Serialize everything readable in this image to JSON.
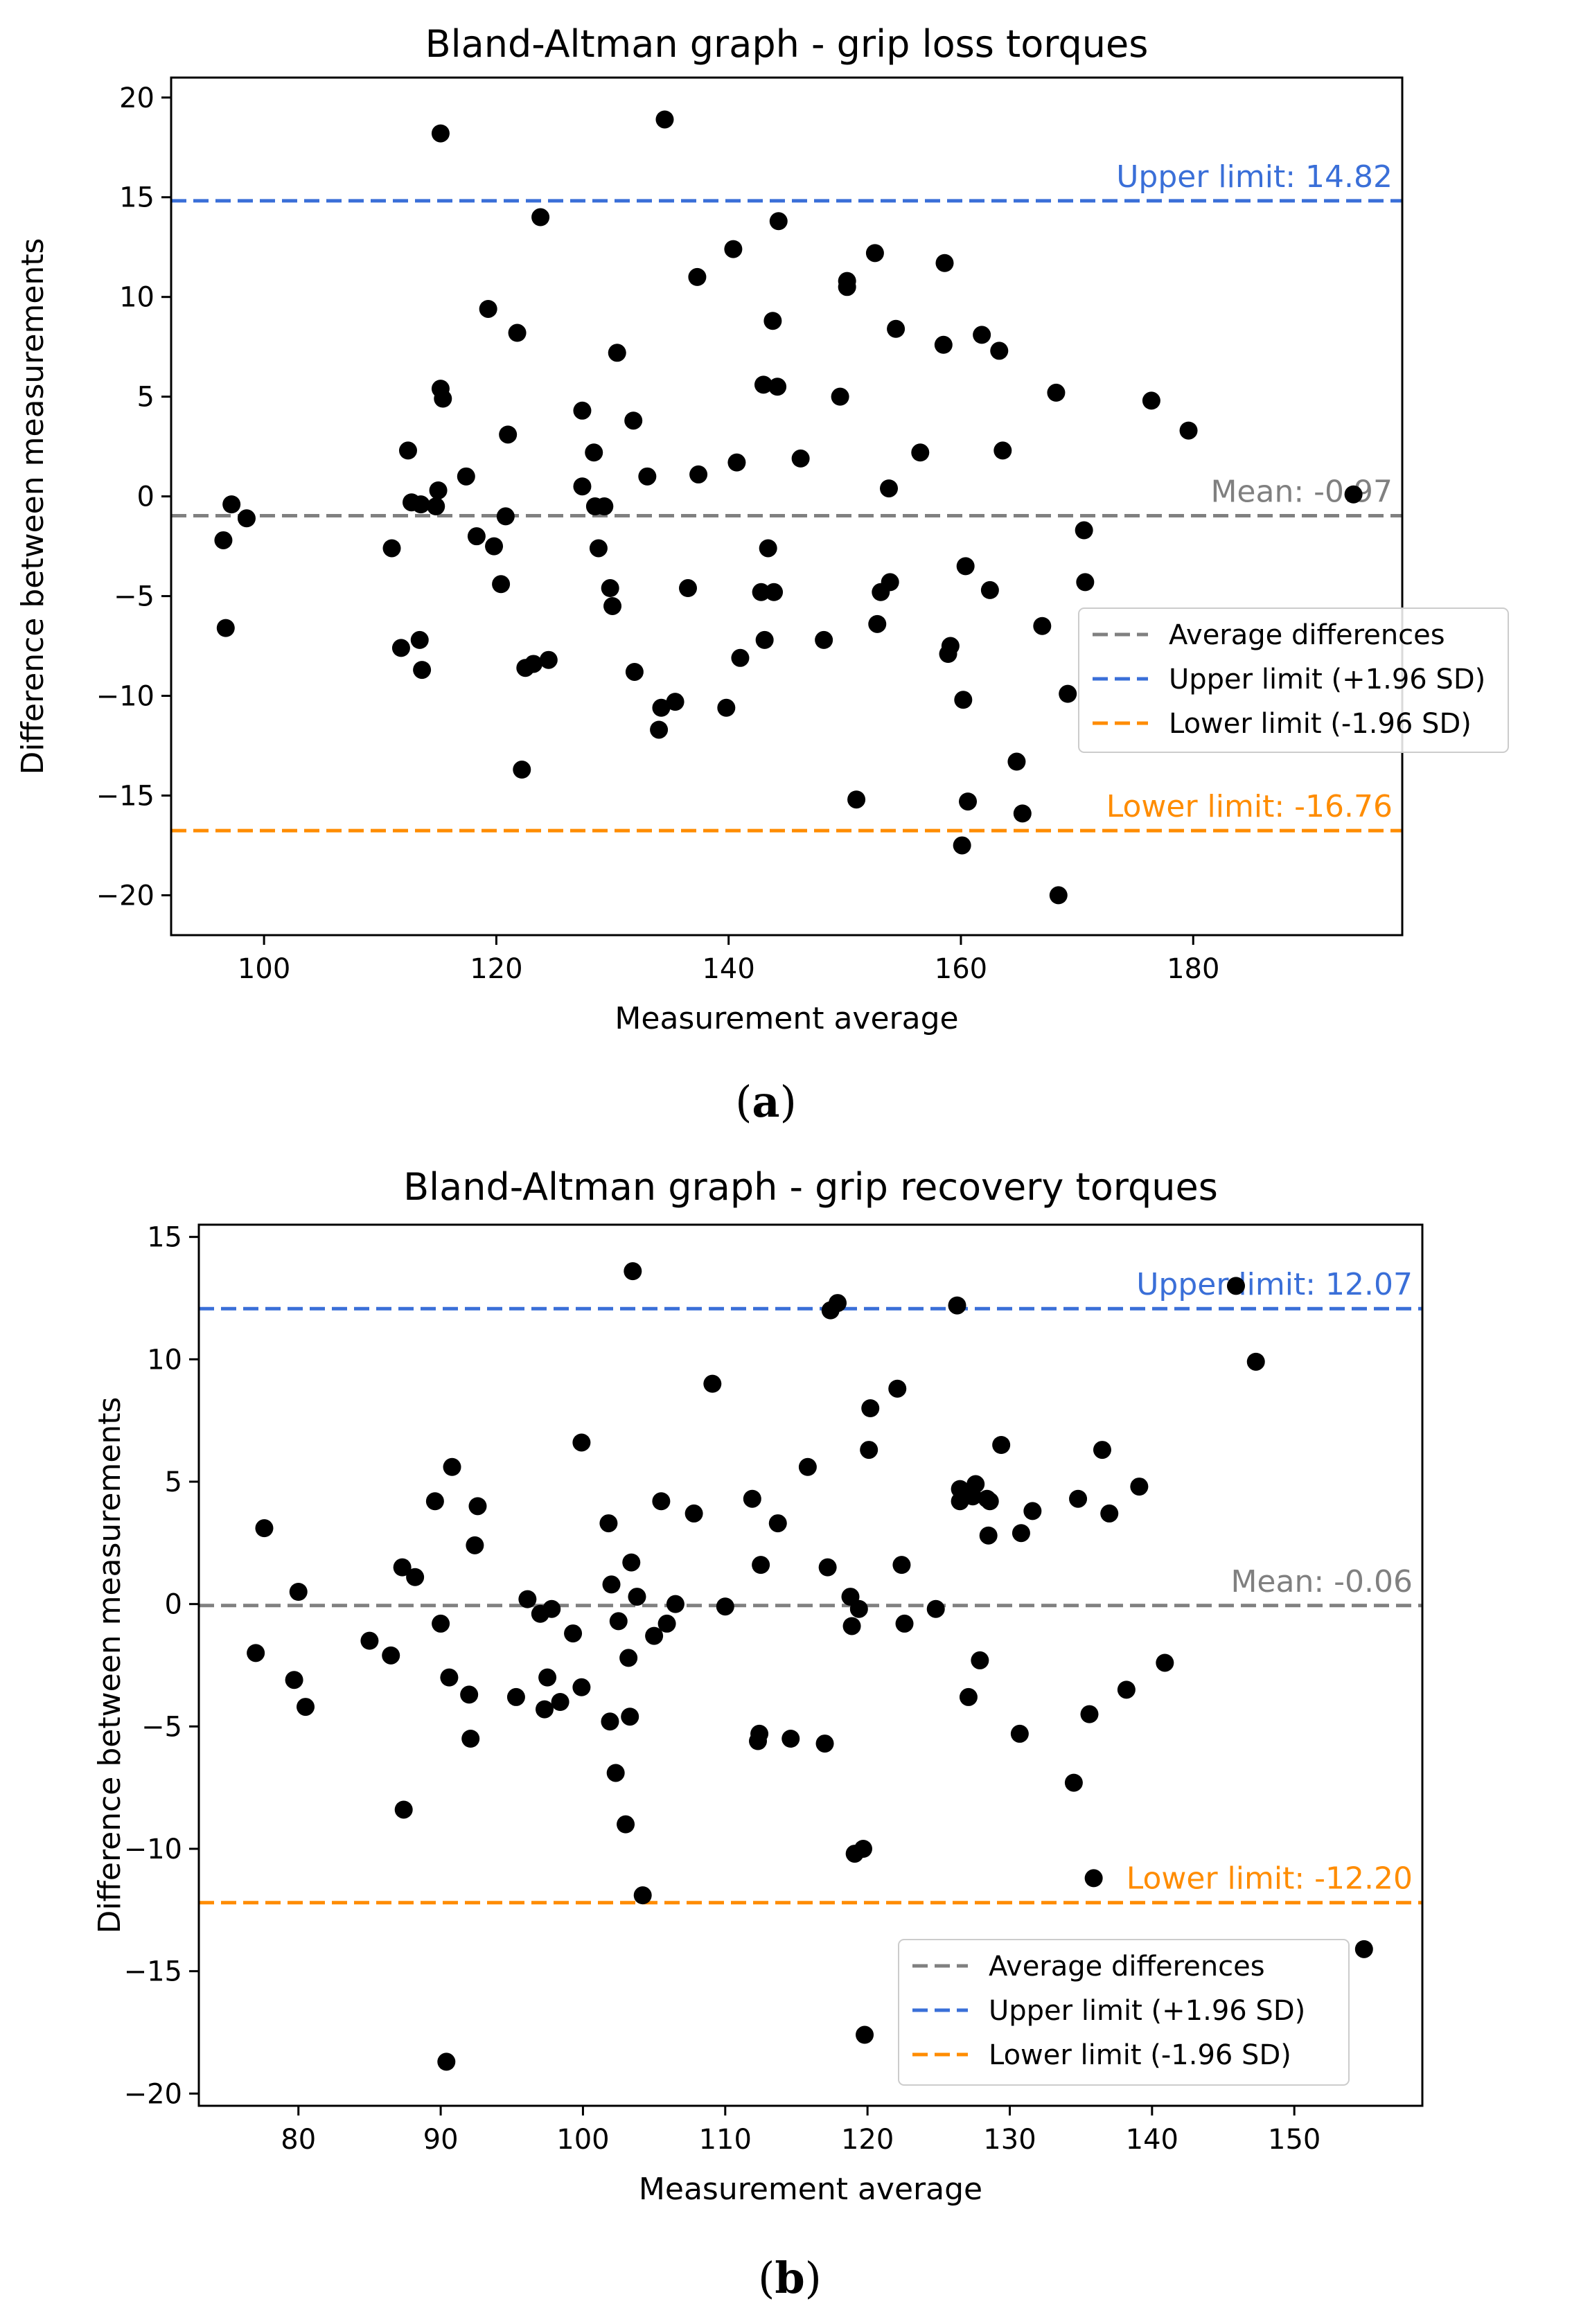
{
  "colors": {
    "mean": "#808080",
    "upper": "#3a6fd8",
    "lower": "#ff8c00",
    "points": "#000000"
  },
  "chart_data": [
    {
      "type": "scatter",
      "panel": "a",
      "caption": "(a)",
      "caption_letter": "a",
      "title": "Bland-Altman graph - grip loss torques",
      "xlabel": "Measurement average",
      "ylabel": "Difference between measurements",
      "xlim": [
        92,
        198
      ],
      "ylim": [
        -22,
        21
      ],
      "xticks": [
        100,
        120,
        140,
        160,
        180
      ],
      "yticks": [
        -20,
        -15,
        -10,
        -5,
        0,
        5,
        10,
        15,
        20
      ],
      "mean": -0.97,
      "upper_limit": 14.82,
      "lower_limit": -16.76,
      "mean_label": "Mean: -0.97",
      "upper_label": "Upper limit: 14.82",
      "lower_label": "Lower limit: -16.76",
      "legend": {
        "position": "center-right",
        "entries": [
          "Average differences",
          "Upper limit (+1.96 SD)",
          "Lower limit (-1.96 SD)"
        ]
      },
      "points": [
        [
          96.5,
          -2.2
        ],
        [
          97.2,
          -0.4
        ],
        [
          98.5,
          -1.1
        ],
        [
          96.7,
          -6.6
        ],
        [
          111,
          -2.6
        ],
        [
          111.8,
          -7.6
        ],
        [
          112.4,
          2.3
        ],
        [
          112.7,
          -0.3
        ],
        [
          113.5,
          -0.4
        ],
        [
          113.4,
          -7.2
        ],
        [
          113.6,
          -8.7
        ],
        [
          114.8,
          -0.5
        ],
        [
          115,
          0.3
        ],
        [
          115.2,
          5.4
        ],
        [
          115.4,
          4.9
        ],
        [
          115.2,
          18.2
        ],
        [
          117.4,
          1.0
        ],
        [
          118.3,
          -2.0
        ],
        [
          119.3,
          9.4
        ],
        [
          119.8,
          -2.5
        ],
        [
          120.4,
          -4.4
        ],
        [
          120.8,
          -1.0
        ],
        [
          121,
          3.1
        ],
        [
          121.8,
          8.2
        ],
        [
          122.2,
          -13.7
        ],
        [
          122.5,
          -8.6
        ],
        [
          123.2,
          -8.4
        ],
        [
          123.8,
          14.0
        ],
        [
          124.5,
          -8.2
        ],
        [
          127.4,
          4.3
        ],
        [
          127.4,
          0.5
        ],
        [
          128.4,
          2.2
        ],
        [
          128.5,
          -0.5
        ],
        [
          128.8,
          -2.6
        ],
        [
          129.3,
          -0.5
        ],
        [
          129.8,
          -4.6
        ],
        [
          130,
          -5.5
        ],
        [
          130.4,
          7.2
        ],
        [
          131.8,
          3.8
        ],
        [
          131.9,
          -8.8
        ],
        [
          133,
          1.0
        ],
        [
          134,
          -11.7
        ],
        [
          134.2,
          -10.6
        ],
        [
          134.5,
          18.9
        ],
        [
          135.4,
          -10.3
        ],
        [
          136.5,
          -4.6
        ],
        [
          137.3,
          11.0
        ],
        [
          137.4,
          1.1
        ],
        [
          139.8,
          -10.6
        ],
        [
          140.4,
          12.4
        ],
        [
          140.7,
          1.7
        ],
        [
          141,
          -8.1
        ],
        [
          142.8,
          -4.8
        ],
        [
          143,
          5.6
        ],
        [
          143.1,
          -7.2
        ],
        [
          143.4,
          -2.6
        ],
        [
          143.8,
          8.8
        ],
        [
          143.9,
          -4.8
        ],
        [
          144.2,
          5.5
        ],
        [
          144.3,
          13.8
        ],
        [
          146.2,
          1.9
        ],
        [
          148.2,
          -7.2
        ],
        [
          149.6,
          5.0
        ],
        [
          150.2,
          10.8
        ],
        [
          150.2,
          10.5
        ],
        [
          151,
          -15.2
        ],
        [
          152.6,
          12.2
        ],
        [
          152.8,
          -6.4
        ],
        [
          153.1,
          -4.8
        ],
        [
          153.8,
          0.4
        ],
        [
          153.9,
          -4.3
        ],
        [
          154.4,
          8.4
        ],
        [
          156.5,
          2.2
        ],
        [
          158.5,
          7.6
        ],
        [
          158.6,
          11.7
        ],
        [
          158.9,
          -7.9
        ],
        [
          159.1,
          -7.5
        ],
        [
          160.1,
          -17.5
        ],
        [
          160.2,
          -10.2
        ],
        [
          160.4,
          -3.5
        ],
        [
          160.6,
          -15.3
        ],
        [
          161.8,
          8.1
        ],
        [
          162.5,
          -4.7
        ],
        [
          163.3,
          7.3
        ],
        [
          163.6,
          2.3
        ],
        [
          164.8,
          -13.3
        ],
        [
          165.3,
          -15.9
        ],
        [
          167,
          -6.5
        ],
        [
          168.2,
          5.2
        ],
        [
          168.4,
          -20.0
        ],
        [
          169.2,
          -9.9
        ],
        [
          170.6,
          -1.7
        ],
        [
          170.7,
          -4.3
        ],
        [
          176.4,
          4.8
        ],
        [
          179.6,
          3.3
        ],
        [
          193.8,
          0.1
        ]
      ]
    },
    {
      "type": "scatter",
      "panel": "b",
      "caption": "(b)",
      "caption_letter": "b",
      "title": "Bland-Altman graph - grip recovery torques",
      "xlabel": "Measurement average",
      "ylabel": "Difference between measurements",
      "xlim": [
        73,
        159
      ],
      "ylim": [
        -20.5,
        15.5
      ],
      "xticks": [
        80,
        90,
        100,
        110,
        120,
        130,
        140,
        150
      ],
      "yticks": [
        -20,
        -15,
        -10,
        -5,
        0,
        5,
        10,
        15
      ],
      "mean": -0.06,
      "upper_limit": 12.07,
      "lower_limit": -12.2,
      "mean_label": "Mean: -0.06",
      "upper_label": "Upper limit: 12.07",
      "lower_label": "Lower limit: -12.20",
      "legend": {
        "position": "lower-right",
        "entries": [
          "Average differences",
          "Upper limit (+1.96 SD)",
          "Lower limit (-1.96 SD)"
        ]
      },
      "points": [
        [
          77,
          -2.0
        ],
        [
          77.6,
          3.1
        ],
        [
          79.7,
          -3.1
        ],
        [
          80,
          0.5
        ],
        [
          80.5,
          -4.2
        ],
        [
          85,
          -1.5
        ],
        [
          86.5,
          -2.1
        ],
        [
          87.3,
          1.5
        ],
        [
          87.4,
          -8.4
        ],
        [
          88.2,
          1.1
        ],
        [
          89.6,
          4.2
        ],
        [
          90,
          -0.8
        ],
        [
          90.4,
          -18.7
        ],
        [
          90.6,
          -3.0
        ],
        [
          90.8,
          5.6
        ],
        [
          92,
          -3.7
        ],
        [
          92.1,
          -5.5
        ],
        [
          92.4,
          2.4
        ],
        [
          92.6,
          4.0
        ],
        [
          95.3,
          -3.8
        ],
        [
          96.1,
          0.2
        ],
        [
          97,
          -0.4
        ],
        [
          97.3,
          -4.3
        ],
        [
          97.5,
          -3.0
        ],
        [
          97.8,
          -0.2
        ],
        [
          98.4,
          -4.0
        ],
        [
          99.3,
          -1.2
        ],
        [
          99.9,
          -3.4
        ],
        [
          99.9,
          6.6
        ],
        [
          101.8,
          3.3
        ],
        [
          101.9,
          -4.8
        ],
        [
          102,
          0.8
        ],
        [
          102.3,
          -6.9
        ],
        [
          102.5,
          -0.7
        ],
        [
          103,
          -9.0
        ],
        [
          103.2,
          -2.2
        ],
        [
          103.3,
          -4.6
        ],
        [
          103.4,
          1.7
        ],
        [
          103.5,
          13.6
        ],
        [
          103.8,
          0.3
        ],
        [
          104.2,
          -11.9
        ],
        [
          105,
          -1.3
        ],
        [
          105.5,
          4.2
        ],
        [
          105.9,
          -0.8
        ],
        [
          106.5,
          0.0
        ],
        [
          107.8,
          3.7
        ],
        [
          109.1,
          9.0
        ],
        [
          110,
          -0.1
        ],
        [
          111.9,
          4.3
        ],
        [
          112.3,
          -5.6
        ],
        [
          112.4,
          -5.3
        ],
        [
          112.5,
          1.6
        ],
        [
          113.7,
          3.3
        ],
        [
          114.6,
          -5.5
        ],
        [
          115.8,
          5.6
        ],
        [
          117,
          -5.7
        ],
        [
          117.2,
          1.5
        ],
        [
          117.4,
          12.0
        ],
        [
          117.9,
          12.3
        ],
        [
          118.8,
          0.3
        ],
        [
          118.9,
          -0.9
        ],
        [
          119.1,
          -10.2
        ],
        [
          119.4,
          -0.2
        ],
        [
          119.7,
          -10.0
        ],
        [
          119.8,
          -17.6
        ],
        [
          120.1,
          6.3
        ],
        [
          120.2,
          8.0
        ],
        [
          122.1,
          8.8
        ],
        [
          122.4,
          1.6
        ],
        [
          122.6,
          -0.8
        ],
        [
          124.8,
          -0.2
        ],
        [
          126.3,
          12.2
        ],
        [
          126.5,
          4.7
        ],
        [
          126.5,
          4.2
        ],
        [
          127.1,
          -3.8
        ],
        [
          127.4,
          4.4
        ],
        [
          127.6,
          4.9
        ],
        [
          127.9,
          -2.3
        ],
        [
          128.4,
          4.3
        ],
        [
          128.5,
          2.8
        ],
        [
          128.6,
          4.2
        ],
        [
          129.4,
          6.5
        ],
        [
          130.7,
          -5.3
        ],
        [
          130.8,
          2.9
        ],
        [
          131.6,
          3.8
        ],
        [
          134.5,
          -7.3
        ],
        [
          134.8,
          4.3
        ],
        [
          135.6,
          -4.5
        ],
        [
          135.9,
          -11.2
        ],
        [
          136.5,
          6.3
        ],
        [
          137,
          3.7
        ],
        [
          138.2,
          -3.5
        ],
        [
          139.1,
          4.8
        ],
        [
          140.9,
          -2.4
        ],
        [
          145.9,
          13.0
        ],
        [
          147.3,
          9.9
        ],
        [
          154.9,
          -14.1
        ]
      ]
    }
  ]
}
